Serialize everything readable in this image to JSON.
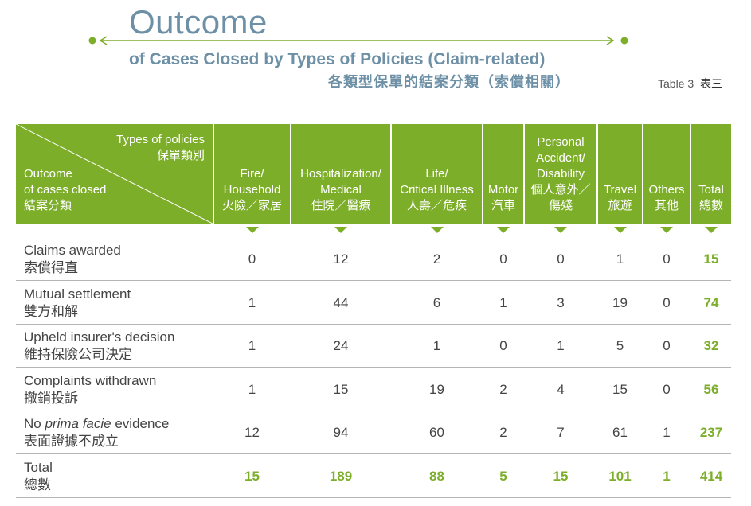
{
  "header": {
    "title": "Outcome",
    "subtitle_en": "of Cases Closed by Types of Policies (Claim-related)",
    "subtitle_zh": "各類型保單的結案分類（索償相關）",
    "table_ref_en": "Table 3",
    "table_ref_zh": "表三"
  },
  "colors": {
    "accent": "#7dae2a",
    "title": "#6d90a6"
  },
  "table": {
    "corner_top_en": "Types of policies",
    "corner_top_zh": "保單類別",
    "corner_bottom_en1": "Outcome",
    "corner_bottom_en2": "of cases closed",
    "corner_bottom_zh": "結案分類",
    "columns": [
      {
        "en1": "Fire/",
        "en2": "Household",
        "zh": "火險／家居"
      },
      {
        "en1": "Hospitalization/",
        "en2": "Medical",
        "zh": "住院／醫療"
      },
      {
        "en1": "Life/",
        "en2": "Critical Illness",
        "zh": "人壽／危疾"
      },
      {
        "en1": "",
        "en2": "Motor",
        "zh": "汽車"
      },
      {
        "en1": "Personal",
        "en2": "Accident/",
        "en3": "Disability",
        "zh": "個人意外／",
        "zh2": "傷殘"
      },
      {
        "en1": "",
        "en2": "Travel",
        "zh": "旅遊"
      },
      {
        "en1": "",
        "en2": "Others",
        "zh": "其他"
      },
      {
        "en1": "",
        "en2": "Total",
        "zh": "總數"
      }
    ],
    "rows": [
      {
        "en": "Claims awarded",
        "zh": "索償得直",
        "values": [
          "0",
          "12",
          "2",
          "0",
          "0",
          "1",
          "0",
          "15"
        ]
      },
      {
        "en": "Mutual settlement",
        "zh": "雙方和解",
        "values": [
          "1",
          "44",
          "6",
          "1",
          "3",
          "19",
          "0",
          "74"
        ]
      },
      {
        "en": "Upheld insurer's decision",
        "zh": "維持保險公司決定",
        "values": [
          "1",
          "24",
          "1",
          "0",
          "1",
          "5",
          "0",
          "32"
        ]
      },
      {
        "en": "Complaints withdrawn",
        "zh": "撤銷投訴",
        "values": [
          "1",
          "15",
          "19",
          "2",
          "4",
          "15",
          "0",
          "56"
        ]
      },
      {
        "en_pre": "No ",
        "en_it": "prima facie",
        "en_post": " evidence",
        "zh": "表面證據不成立",
        "values": [
          "12",
          "94",
          "60",
          "2",
          "7",
          "61",
          "1",
          "237"
        ]
      },
      {
        "en": "Total",
        "zh": "總數",
        "values": [
          "15",
          "189",
          "88",
          "5",
          "15",
          "101",
          "1",
          "414"
        ]
      }
    ]
  }
}
